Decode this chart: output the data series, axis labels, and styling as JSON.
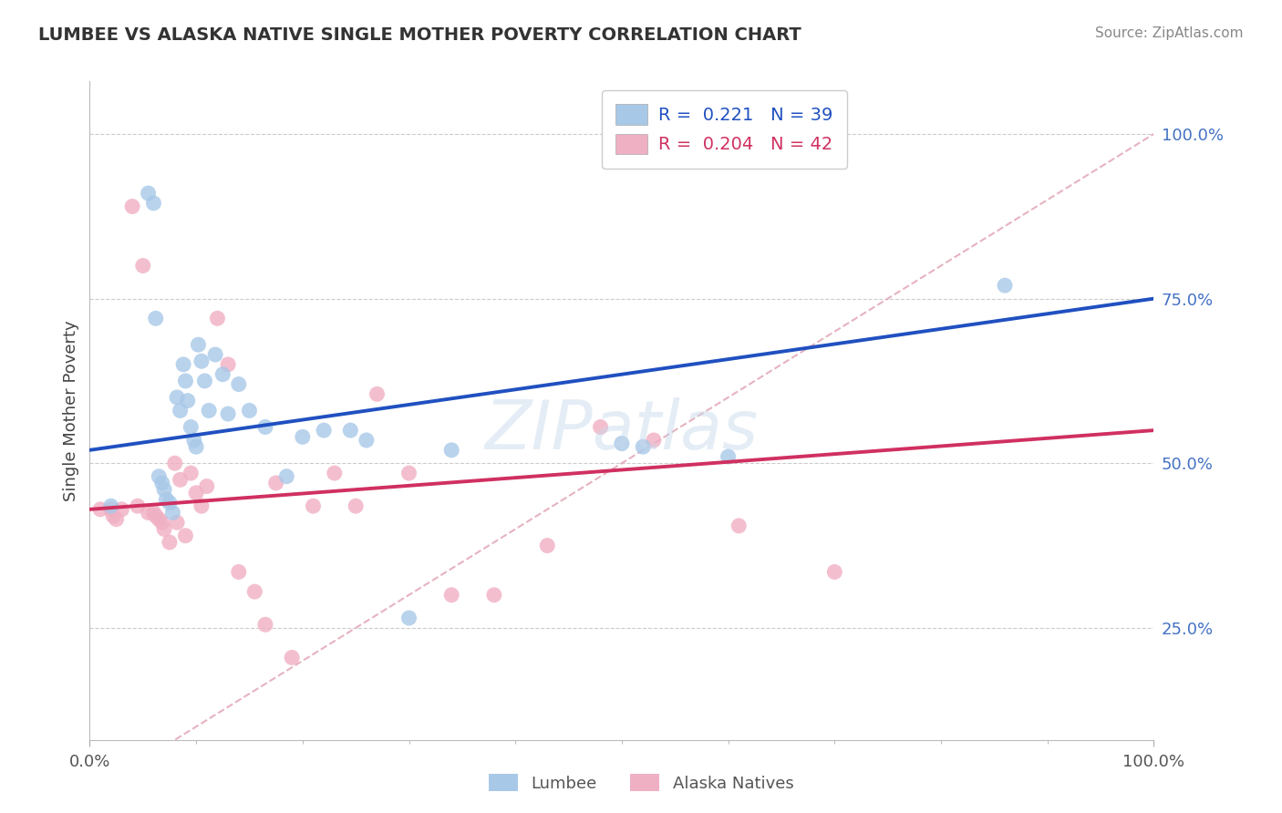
{
  "title": "LUMBEE VS ALASKA NATIVE SINGLE MOTHER POVERTY CORRELATION CHART",
  "source_text": "Source: ZipAtlas.com",
  "ylabel": "Single Mother Poverty",
  "xlim": [
    0.0,
    1.0
  ],
  "ylim": [
    0.08,
    1.08
  ],
  "ytick_labels": [
    "25.0%",
    "50.0%",
    "75.0%",
    "100.0%"
  ],
  "ytick_positions": [
    0.25,
    0.5,
    0.75,
    1.0
  ],
  "xtick_labels": [
    "0.0%",
    "100.0%"
  ],
  "xtick_positions": [
    0.0,
    1.0
  ],
  "lumbee_color": "#a8c8e8",
  "alaska_color": "#f0b0c4",
  "lumbee_line_color": "#2050c0",
  "alaska_line_color": "#d03060",
  "ref_line_color": "#e0a0b0",
  "grid_color": "#cccccc",
  "lumbee_R": "0.221",
  "alaska_R": "0.204",
  "lumbee_N": 39,
  "alaska_N": 42,
  "lumbee_x": [
    0.02,
    0.055,
    0.06,
    0.062,
    0.065,
    0.068,
    0.07,
    0.072,
    0.075,
    0.078,
    0.082,
    0.085,
    0.088,
    0.09,
    0.092,
    0.095,
    0.098,
    0.1,
    0.102,
    0.105,
    0.108,
    0.112,
    0.118,
    0.125,
    0.13,
    0.14,
    0.15,
    0.165,
    0.185,
    0.2,
    0.22,
    0.245,
    0.26,
    0.3,
    0.34,
    0.5,
    0.52,
    0.6,
    0.86
  ],
  "lumbee_y": [
    0.435,
    0.91,
    0.895,
    0.72,
    0.48,
    0.47,
    0.46,
    0.445,
    0.44,
    0.425,
    0.6,
    0.58,
    0.65,
    0.625,
    0.595,
    0.555,
    0.535,
    0.525,
    0.68,
    0.655,
    0.625,
    0.58,
    0.665,
    0.635,
    0.575,
    0.62,
    0.58,
    0.555,
    0.48,
    0.54,
    0.55,
    0.55,
    0.535,
    0.265,
    0.52,
    0.53,
    0.525,
    0.51,
    0.77
  ],
  "alaska_x": [
    0.01,
    0.02,
    0.022,
    0.025,
    0.03,
    0.04,
    0.045,
    0.05,
    0.055,
    0.06,
    0.062,
    0.065,
    0.068,
    0.07,
    0.075,
    0.08,
    0.082,
    0.085,
    0.09,
    0.095,
    0.1,
    0.105,
    0.11,
    0.12,
    0.13,
    0.14,
    0.155,
    0.165,
    0.175,
    0.19,
    0.21,
    0.23,
    0.25,
    0.27,
    0.3,
    0.34,
    0.38,
    0.43,
    0.48,
    0.53,
    0.61,
    0.7
  ],
  "alaska_y": [
    0.43,
    0.43,
    0.42,
    0.415,
    0.43,
    0.89,
    0.435,
    0.8,
    0.425,
    0.425,
    0.42,
    0.415,
    0.41,
    0.4,
    0.38,
    0.5,
    0.41,
    0.475,
    0.39,
    0.485,
    0.455,
    0.435,
    0.465,
    0.72,
    0.65,
    0.335,
    0.305,
    0.255,
    0.47,
    0.205,
    0.435,
    0.485,
    0.435,
    0.605,
    0.485,
    0.3,
    0.3,
    0.375,
    0.555,
    0.535,
    0.405,
    0.335
  ],
  "lumbee_line_x0": 0.0,
  "lumbee_line_y0": 0.52,
  "lumbee_line_x1": 1.0,
  "lumbee_line_y1": 0.75,
  "alaska_line_x0": 0.0,
  "alaska_line_y0": 0.43,
  "alaska_line_x1": 1.0,
  "alaska_line_y1": 0.55
}
